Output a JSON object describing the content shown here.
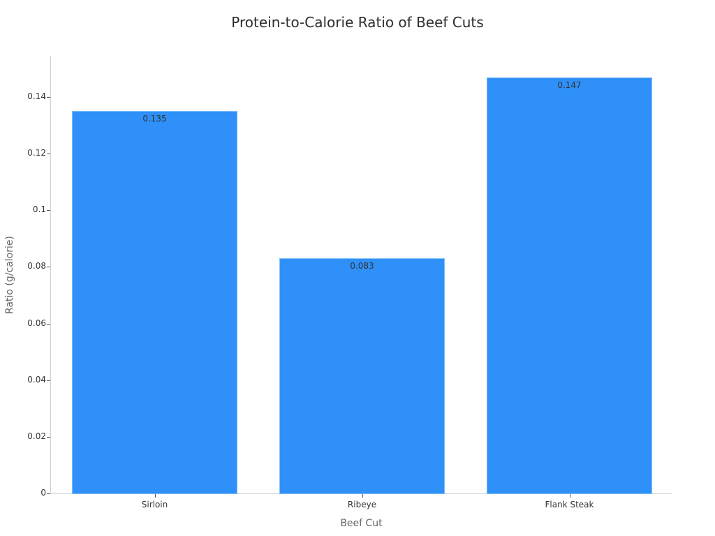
{
  "chart_data": {
    "type": "bar",
    "title": "Protein-to-Calorie Ratio of Beef Cuts",
    "xlabel": "Beef Cut",
    "ylabel": "Ratio (g/calorie)",
    "categories": [
      "Sirloin",
      "Ribeye",
      "Flank Steak"
    ],
    "values": [
      0.135,
      0.083,
      0.147
    ],
    "data_labels": [
      "0.135",
      "0.083",
      "0.147"
    ],
    "ylim": [
      0,
      0.155
    ],
    "yticks": [
      "0",
      "0.02",
      "0.04",
      "0.06",
      "0.08",
      "0.1",
      "0.12",
      "0.14"
    ],
    "grid": false,
    "legend": null,
    "bar_color": "#2e90f8"
  }
}
